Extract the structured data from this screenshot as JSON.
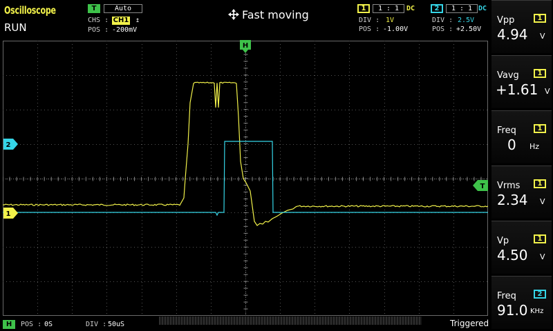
{
  "header": {
    "app_title": "Oscilloscope",
    "run_state": "RUN",
    "mode_label": "Fast moving"
  },
  "trigger": {
    "badge": "T",
    "mode": "Auto",
    "chs_label": "CHS :",
    "chs_value": "CH1",
    "edge_symbol": "↥",
    "pos_label": "POS :",
    "pos_value": "-200mV",
    "marker_label": "T"
  },
  "channel1": {
    "badge": "1",
    "probe": "1 : 1",
    "coupling": "DC",
    "div_label": "DIV :",
    "div_value": "1V",
    "pos_label": "POS :",
    "pos_value": "-1.00V",
    "marker_label": "1",
    "color": "#f2f24a"
  },
  "channel2": {
    "badge": "2",
    "probe": "1 : 1",
    "coupling": "DC",
    "div_label": "DIV :",
    "div_value": "2.5V",
    "pos_label": "POS :",
    "pos_value": "+2.50V",
    "marker_label": "2",
    "color": "#35d6e8"
  },
  "horizontal": {
    "badge": "H",
    "pos_label": "POS :",
    "pos_value": "0S",
    "div_label": "DIV :",
    "div_value": "50uS",
    "marker_label": "H"
  },
  "measurements": [
    {
      "name": "Vpp",
      "channel": "1",
      "value": "4.94",
      "unit": "V"
    },
    {
      "name": "Vavg",
      "channel": "1",
      "value": "+1.61",
      "unit": "V"
    },
    {
      "name": "Freq",
      "channel": "1",
      "value": "0",
      "unit": "Hz"
    },
    {
      "name": "Vrms",
      "channel": "1",
      "value": "2.34",
      "unit": "V"
    },
    {
      "name": "Vp",
      "channel": "1",
      "value": "4.50",
      "unit": "V"
    },
    {
      "name": "Freq",
      "channel": "2",
      "value": "91.0",
      "unit": "KHz"
    }
  ],
  "status": {
    "triggered": "Triggered"
  }
}
